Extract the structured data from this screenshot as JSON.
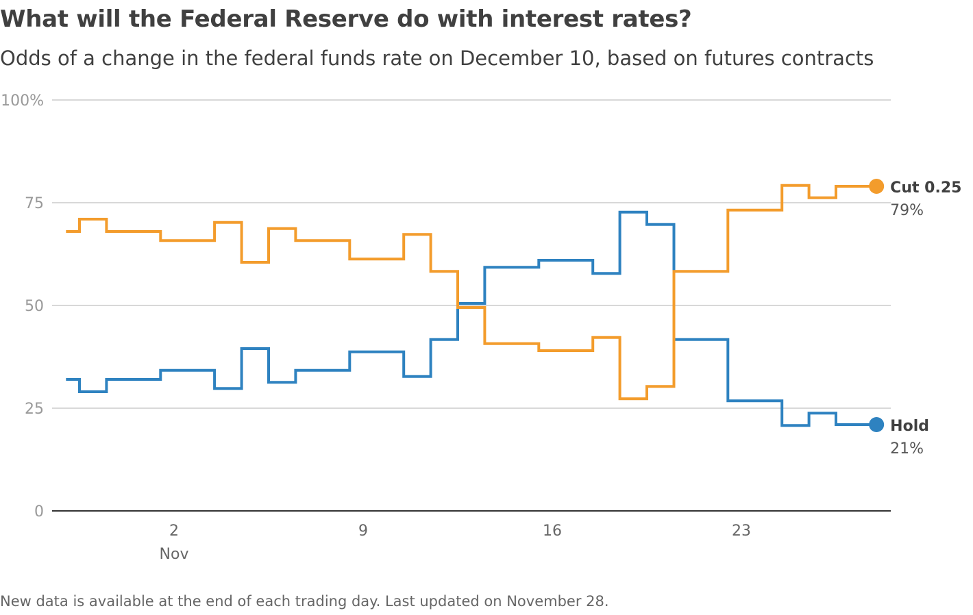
{
  "header": {
    "title": "What will the Federal Reserve do with interest rates?",
    "subtitle": "Odds of a change in the federal funds rate on December 10, based on futures contracts"
  },
  "footer": {
    "note": "New data is available at the end of each trading day. Last updated on November 28."
  },
  "chart_data": {
    "type": "line",
    "title": "What will the Federal Reserve do with interest rates?",
    "subtitle": "Odds of a change in the federal funds rate on December 10, based on futures contracts",
    "xlabel": "",
    "ylabel": "",
    "x_unit": "day of November",
    "xlim": [
      -3,
      28.5
    ],
    "ylim": [
      0,
      100
    ],
    "grid": true,
    "y_ticks": [
      {
        "value": 0,
        "label": "0"
      },
      {
        "value": 25,
        "label": "25"
      },
      {
        "value": 50,
        "label": "50"
      },
      {
        "value": 75,
        "label": "75"
      },
      {
        "value": 100,
        "label": "100%"
      }
    ],
    "x_ticks": [
      {
        "value": 2,
        "label": "2",
        "sublabel": "Nov"
      },
      {
        "value": 9,
        "label": "9",
        "sublabel": ""
      },
      {
        "value": 16,
        "label": "16",
        "sublabel": ""
      },
      {
        "value": 23,
        "label": "23",
        "sublabel": ""
      }
    ],
    "step_boundaries": [
      -2,
      -1.5,
      -0.5,
      1.5,
      3.5,
      4.5,
      5.5,
      6.5,
      8.5,
      10.5,
      11.5,
      12.5,
      13.5,
      15.5,
      17.5,
      18.5,
      19.5,
      20.5,
      22.5,
      24.5,
      25.5,
      26.5,
      28
    ],
    "series": [
      {
        "name": "Cut 0.25",
        "color": "#f39c2c",
        "end_label": "79%",
        "values": [
          68,
          71,
          68,
          65.8,
          70.2,
          60.5,
          68.7,
          65.8,
          61.3,
          67.3,
          58.3,
          49.5,
          40.7,
          39,
          42.2,
          27.3,
          30.3,
          58.3,
          73.2,
          79.2,
          76.2,
          79
        ]
      },
      {
        "name": "Hold",
        "color": "#2e82c0",
        "end_label": "21%",
        "values": [
          32,
          29,
          32,
          34.2,
          29.8,
          39.5,
          31.3,
          34.2,
          38.7,
          32.7,
          41.7,
          50.5,
          59.3,
          61,
          57.8,
          72.7,
          69.7,
          41.7,
          26.8,
          20.8,
          23.8,
          21
        ]
      }
    ]
  }
}
